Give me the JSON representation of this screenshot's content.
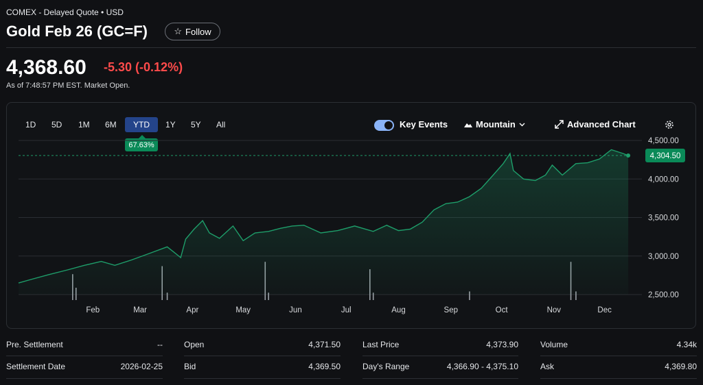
{
  "header": {
    "subtitle": "COMEX - Delayed Quote • USD",
    "title": "Gold Feb 26 (GC=F)",
    "follow_label": "Follow"
  },
  "quote": {
    "price": "4,368.60",
    "change": "-5.30",
    "change_pct": "(-0.12%)",
    "as_of": "As of 7:48:57 PM EST. Market Open."
  },
  "chart_controls": {
    "ranges": [
      "1D",
      "5D",
      "1M",
      "6M",
      "YTD",
      "1Y",
      "5Y",
      "All"
    ],
    "active_range": "YTD",
    "ytd_badge": "67.63%",
    "key_events_label": "Key Events",
    "key_events_on": true,
    "chart_type_label": "Mountain",
    "advanced_label": "Advanced Chart"
  },
  "colors": {
    "line": "#1e9e6a",
    "badge": "#0a8a58",
    "negative": "#ff4b4b",
    "active_range": "#24448a"
  },
  "chart_data": {
    "type": "area",
    "x_tick_labels": [
      "Feb",
      "Mar",
      "Apr",
      "May",
      "Jun",
      "Jul",
      "Aug",
      "Sep",
      "Oct",
      "Nov",
      "Dec"
    ],
    "y_tick_labels": [
      "4,500.00",
      "4,000.00",
      "3,500.00",
      "3,000.00",
      "2,500.00"
    ],
    "ylim": [
      2500,
      4500
    ],
    "grid": true,
    "current_value_label": "4,304.50",
    "current_value": 4304.5,
    "x": [
      "Jan 2",
      "Jan 10",
      "Jan 20",
      "Jan 31",
      "Feb 10",
      "Feb 20",
      "Feb 28",
      "Mar 10",
      "Mar 20",
      "Mar 31",
      "Apr 4",
      "Apr 8",
      "Apr 11",
      "Apr 16",
      "Apr 21",
      "Apr 25",
      "May 1",
      "May 9",
      "May 15",
      "May 22",
      "May 30",
      "Jun 6",
      "Jun 13",
      "Jun 20",
      "Jun 30",
      "Jul 10",
      "Jul 20",
      "Jul 31",
      "Aug 8",
      "Aug 15",
      "Aug 22",
      "Aug 29",
      "Sep 5",
      "Sep 12",
      "Sep 19",
      "Sep 26",
      "Oct 3",
      "Oct 10",
      "Oct 16",
      "Oct 20",
      "Oct 22",
      "Oct 28",
      "Nov 4",
      "Nov 10",
      "Nov 14",
      "Nov 20",
      "Nov 28",
      "Dec 5",
      "Dec 12",
      "Dec 19",
      "Dec 26",
      "Dec 29"
    ],
    "values": [
      2650,
      2700,
      2760,
      2820,
      2880,
      2930,
      2880,
      2950,
      3030,
      3120,
      3050,
      2980,
      3220,
      3350,
      3460,
      3300,
      3230,
      3390,
      3200,
      3300,
      3320,
      3360,
      3390,
      3400,
      3300,
      3330,
      3390,
      3320,
      3400,
      3330,
      3350,
      3440,
      3600,
      3680,
      3700,
      3770,
      3880,
      4050,
      4200,
      4330,
      4110,
      4000,
      3980,
      4050,
      4180,
      4050,
      4200,
      4210,
      4260,
      4380,
      4330,
      4304.5
    ],
    "volume": [
      {
        "x": "Feb 3",
        "v": 0.42
      },
      {
        "x": "Feb 5",
        "v": 0.2
      },
      {
        "x": "Mar 28",
        "v": 0.55
      },
      {
        "x": "Mar 31",
        "v": 0.12
      },
      {
        "x": "May 28",
        "v": 0.62
      },
      {
        "x": "May 30",
        "v": 0.12
      },
      {
        "x": "Jul 29",
        "v": 0.5
      },
      {
        "x": "Jul 31",
        "v": 0.12
      },
      {
        "x": "Sep 26",
        "v": 0.14
      },
      {
        "x": "Nov 25",
        "v": 0.62
      },
      {
        "x": "Nov 28",
        "v": 0.14
      }
    ]
  },
  "stats": [
    {
      "label": "Pre. Settlement",
      "value": "--"
    },
    {
      "label": "Open",
      "value": "4,371.50"
    },
    {
      "label": "Last Price",
      "value": "4,373.90"
    },
    {
      "label": "Volume",
      "value": "4.34k"
    },
    {
      "label": "Settlement Date",
      "value": "2026-02-25"
    },
    {
      "label": "Bid",
      "value": "4,369.50"
    },
    {
      "label": "Day's Range",
      "value": "4,366.90 - 4,375.10"
    },
    {
      "label": "Ask",
      "value": "4,369.80"
    }
  ]
}
